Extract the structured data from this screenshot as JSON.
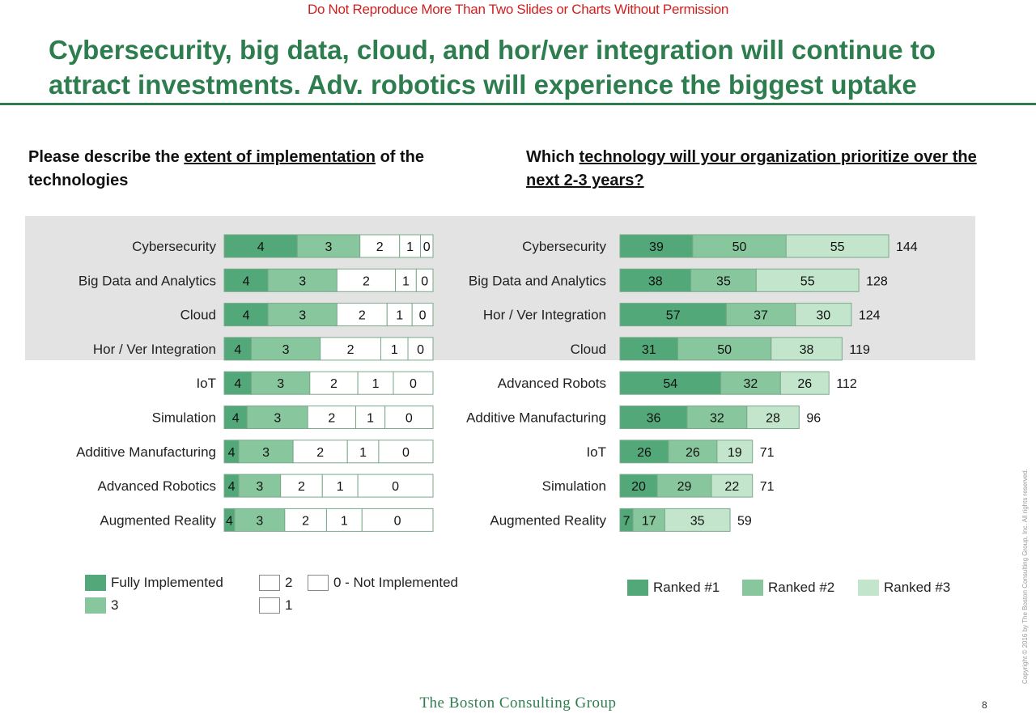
{
  "notice": "Do Not Reproduce More Than Two Slides or Charts Without Permission",
  "title": "Cybersecurity, big data, cloud, and hor/ver integration will continue to attract investments. Adv. robotics will experience the biggest uptake",
  "left_question": {
    "pre": "Please describe the ",
    "underlined": "extent of implementation",
    "post": " of the technologies"
  },
  "right_question": {
    "pre": "Which ",
    "underlined": "technology will your organization prioritize over the next 2-3 years?"
  },
  "colors": {
    "dark": "#52a878",
    "mid": "#88c79e",
    "light": "#c2e5cb",
    "white": "#ffffff",
    "border": "#7aa88a",
    "highlight": "#e3e3e3",
    "title": "#2e7d4f",
    "notice": "#d21f1f"
  },
  "chart_data": [
    {
      "type": "bar",
      "orientation": "horizontal",
      "stacked": true,
      "title": "Please describe the extent of implementation of the technologies",
      "categories": [
        "Cybersecurity",
        "Big Data and Analytics",
        "Cloud",
        "Hor / Ver Integration",
        "IoT",
        "Simulation",
        "Additive Manufacturing",
        "Advanced Robotics",
        "Augmented Reality"
      ],
      "highlighted_categories": [
        "Cybersecurity",
        "Big Data and Analytics",
        "Cloud",
        "Hor / Ver Integration"
      ],
      "series": [
        {
          "name": "Fully Implemented",
          "label": "4",
          "shares": [
            0.35,
            0.21,
            0.21,
            0.13,
            0.13,
            0.11,
            0.07,
            0.07,
            0.05
          ]
        },
        {
          "name": "3",
          "label": "3",
          "shares": [
            0.3,
            0.33,
            0.33,
            0.33,
            0.28,
            0.29,
            0.26,
            0.2,
            0.24
          ]
        },
        {
          "name": "2",
          "label": "2",
          "shares": [
            0.19,
            0.28,
            0.24,
            0.29,
            0.23,
            0.23,
            0.26,
            0.2,
            0.2
          ]
        },
        {
          "name": "1",
          "label": "1",
          "shares": [
            0.1,
            0.1,
            0.12,
            0.13,
            0.17,
            0.14,
            0.15,
            0.17,
            0.17
          ]
        },
        {
          "name": "0 - Not Implemented",
          "label": "0",
          "shares": [
            0.06,
            0.08,
            0.1,
            0.12,
            0.19,
            0.23,
            0.26,
            0.36,
            0.34
          ]
        }
      ],
      "legend": "bottom"
    },
    {
      "type": "bar",
      "orientation": "horizontal",
      "stacked": true,
      "title": "Which technology will your organization prioritize over the next 2-3 years?",
      "categories": [
        "Cybersecurity",
        "Big Data and Analytics",
        "Hor / Ver Integration",
        "Cloud",
        "Advanced Robots",
        "Additive Manufacturing",
        "IoT",
        "Simulation",
        "Augmented Reality"
      ],
      "highlighted_categories": [
        "Cybersecurity",
        "Big Data and Analytics",
        "Hor / Ver Integration",
        "Cloud"
      ],
      "series": [
        {
          "name": "Ranked #1",
          "values": [
            39,
            38,
            57,
            31,
            54,
            36,
            26,
            20,
            7
          ]
        },
        {
          "name": "Ranked #2",
          "values": [
            50,
            35,
            37,
            50,
            32,
            32,
            26,
            29,
            17
          ]
        },
        {
          "name": "Ranked #3",
          "values": [
            55,
            55,
            30,
            38,
            26,
            28,
            19,
            22,
            35
          ]
        }
      ],
      "totals": [
        144,
        128,
        124,
        119,
        112,
        96,
        71,
        71,
        59
      ],
      "legend": "bottom"
    }
  ],
  "left_legend": [
    "Fully Implemented",
    "3",
    "2",
    "1",
    "0 - Not Implemented"
  ],
  "right_legend": [
    "Ranked #1",
    "Ranked #2",
    "Ranked #3"
  ],
  "footer": "The Boston Consulting Group",
  "page_number": "8",
  "copyright": "Copyright © 2016 by The Boston Consulting Group, Inc. All rights reserved."
}
